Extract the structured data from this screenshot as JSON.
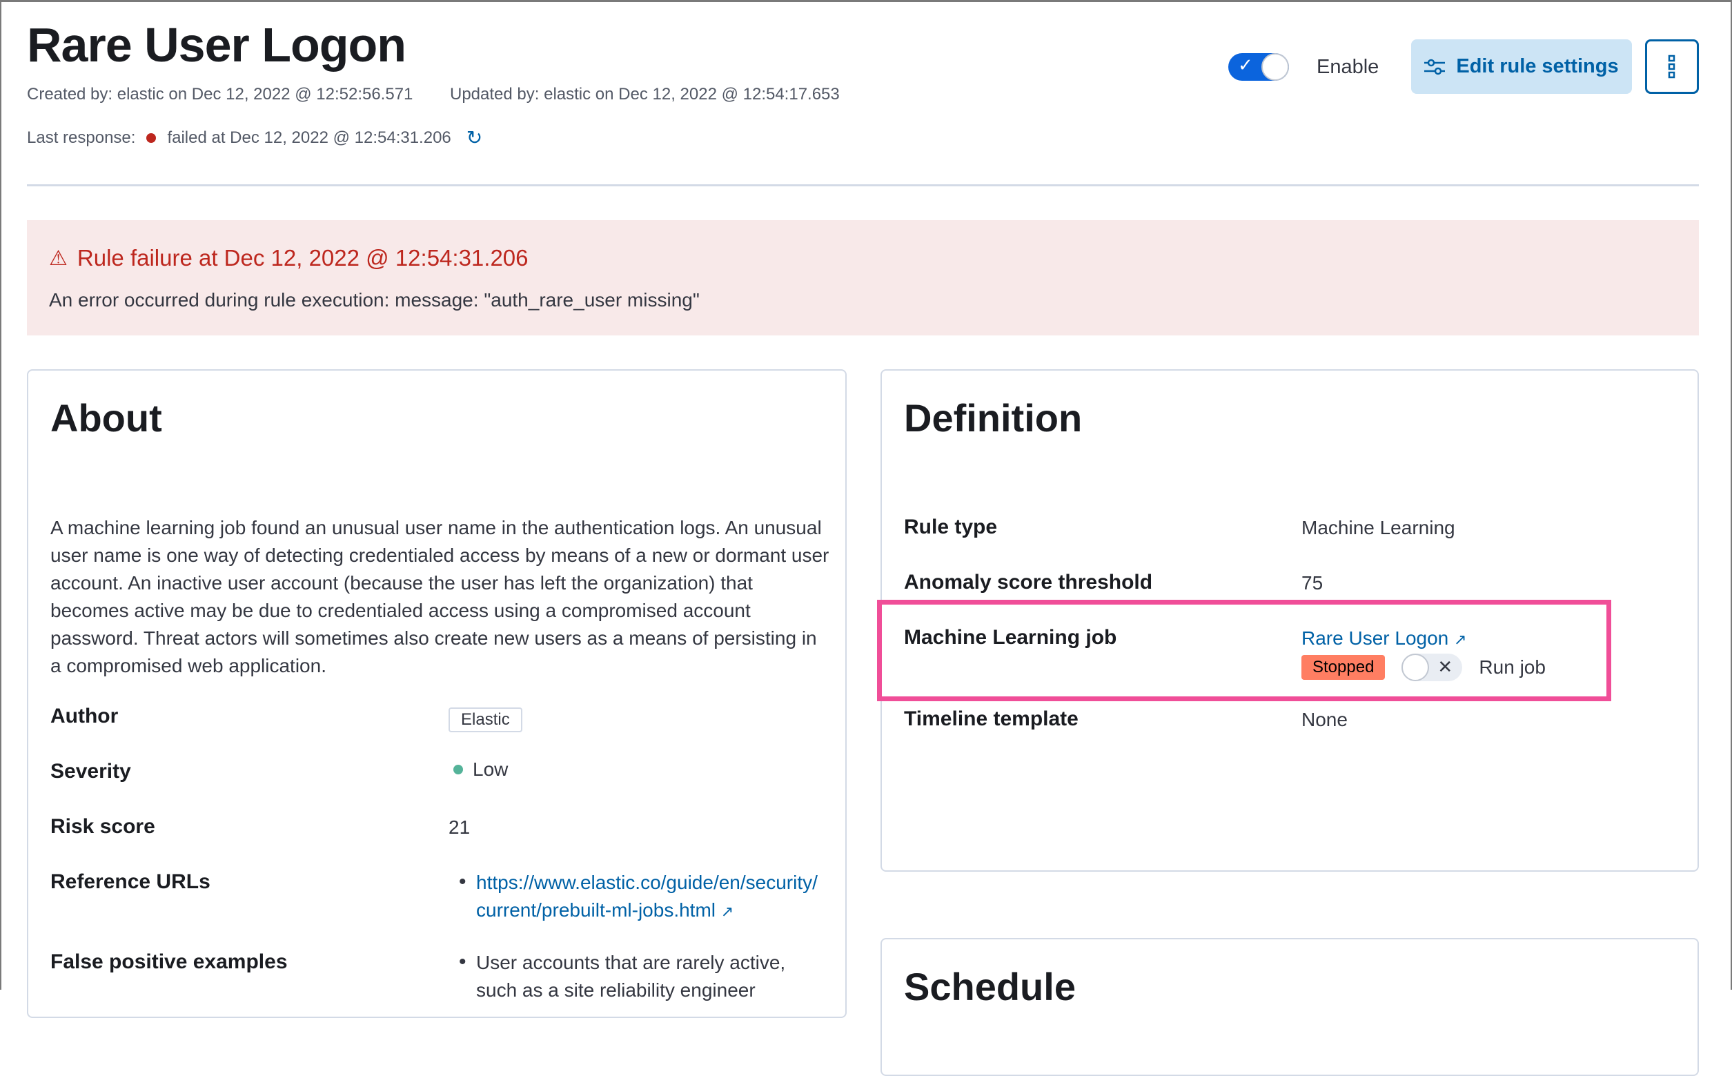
{
  "header": {
    "title": "Rare User Logon",
    "created": "Created by: elastic on Dec 12, 2022 @ 12:52:56.571",
    "updated": "Updated by: elastic on Dec 12, 2022 @ 12:54:17.653",
    "last_response_label": "Last response:",
    "last_response_value": "failed at Dec 12, 2022 @ 12:54:31.206",
    "status_color": "#bd271e",
    "enable_label": "Enable",
    "enabled": true,
    "edit_button": "Edit rule settings"
  },
  "callout": {
    "title": "Rule failure at Dec 12, 2022 @ 12:54:31.206",
    "message": "An error occurred during rule execution: message: \"auth_rare_user missing\""
  },
  "about": {
    "heading": "About",
    "description": "A machine learning job found an unusual user name in the authentication logs. An unusual user name is one way of detecting credentialed access by means of a new or dormant user account. An inactive user account (because the user has left the organization) that becomes active may be due to credentialed access using a compromised account password. Threat actors will sometimes also create new users as a means of persisting in a compromised web application.",
    "author_label": "Author",
    "author_value": "Elastic",
    "severity_label": "Severity",
    "severity_value": "Low",
    "severity_color": "#54b399",
    "risk_label": "Risk score",
    "risk_value": "21",
    "refs_label": "Reference URLs",
    "refs": [
      "https://www.elastic.co/guide/en/security/current/prebuilt-ml-jobs.html"
    ],
    "fp_label": "False positive examples",
    "fp": [
      "User accounts that are rarely active, such as a site reliability engineer"
    ]
  },
  "definition": {
    "heading": "Definition",
    "rule_type_label": "Rule type",
    "rule_type_value": "Machine Learning",
    "threshold_label": "Anomaly score threshold",
    "threshold_value": "75",
    "ml_job_label": "Machine Learning job",
    "ml_job_link": "Rare User Logon",
    "ml_job_status": "Stopped",
    "run_job_label": "Run job",
    "run_job_on": false,
    "timeline_label": "Timeline template",
    "timeline_value": "None",
    "highlight_color": "#f04e98"
  },
  "schedule": {
    "heading": "Schedule"
  }
}
